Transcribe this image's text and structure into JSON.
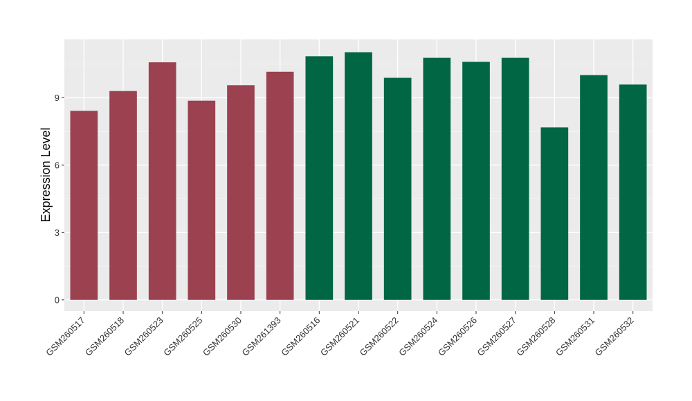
{
  "chart_data": {
    "type": "bar",
    "ylabel": "Expression Level",
    "xlabel": "",
    "categories": [
      "GSM260517",
      "GSM260518",
      "GSM260523",
      "GSM260525",
      "GSM260530",
      "GSM261393",
      "GSM260516",
      "GSM260521",
      "GSM260522",
      "GSM260524",
      "GSM260526",
      "GSM260527",
      "GSM260528",
      "GSM260531",
      "GSM260532"
    ],
    "values": [
      8.42,
      9.3,
      10.58,
      8.87,
      9.56,
      10.16,
      10.85,
      11.03,
      9.89,
      10.78,
      10.6,
      10.78,
      7.68,
      10.01,
      9.59
    ],
    "group_colors": [
      "#9b4150",
      "#9b4150",
      "#9b4150",
      "#9b4150",
      "#9b4150",
      "#9b4150",
      "#006644",
      "#006644",
      "#006644",
      "#006644",
      "#006644",
      "#006644",
      "#006644",
      "#006644",
      "#006644"
    ],
    "ylim": [
      -0.5,
      11.6
    ],
    "yticks": [
      0,
      3,
      6,
      9
    ],
    "grid": true,
    "panel_background": "#ebebeb",
    "legend": "none"
  }
}
